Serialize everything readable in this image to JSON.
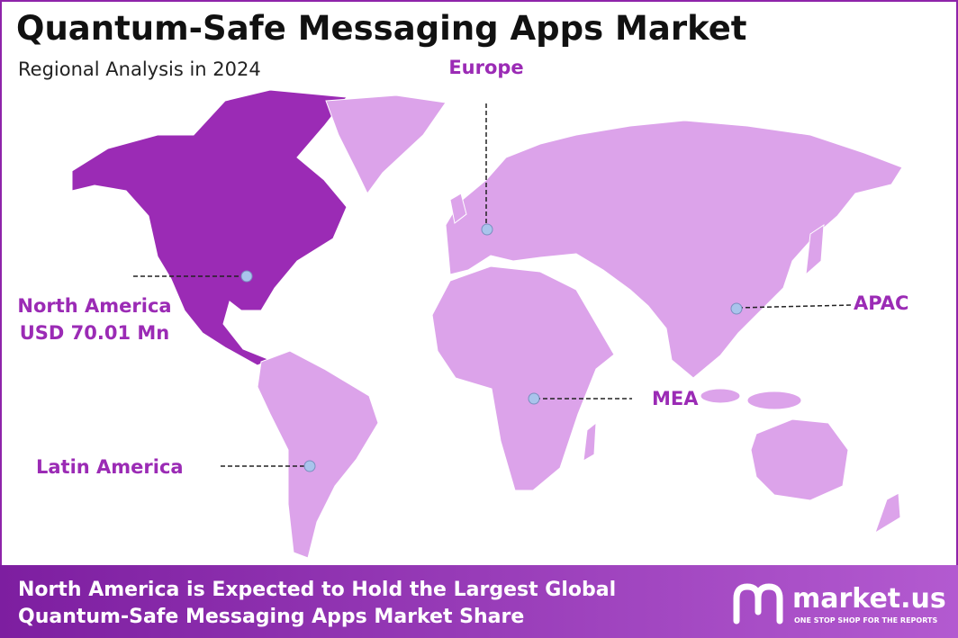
{
  "header": {
    "title": "Quantum-Safe Messaging Apps Market",
    "subtitle": "Regional Analysis in 2024"
  },
  "regions": [
    {
      "name": "North America",
      "value": "USD 70.01 Mn"
    },
    {
      "name": "Europe"
    },
    {
      "name": "APAC"
    },
    {
      "name": "MEA"
    },
    {
      "name": "Latin America"
    }
  ],
  "footer": {
    "lines": [
      "North America is Expected to Hold the Largest Global",
      "Quantum-Safe Messaging Apps Market Share"
    ]
  },
  "logo": {
    "name": "market.us",
    "tagline": "ONE STOP SHOP FOR THE REPORTS"
  }
}
